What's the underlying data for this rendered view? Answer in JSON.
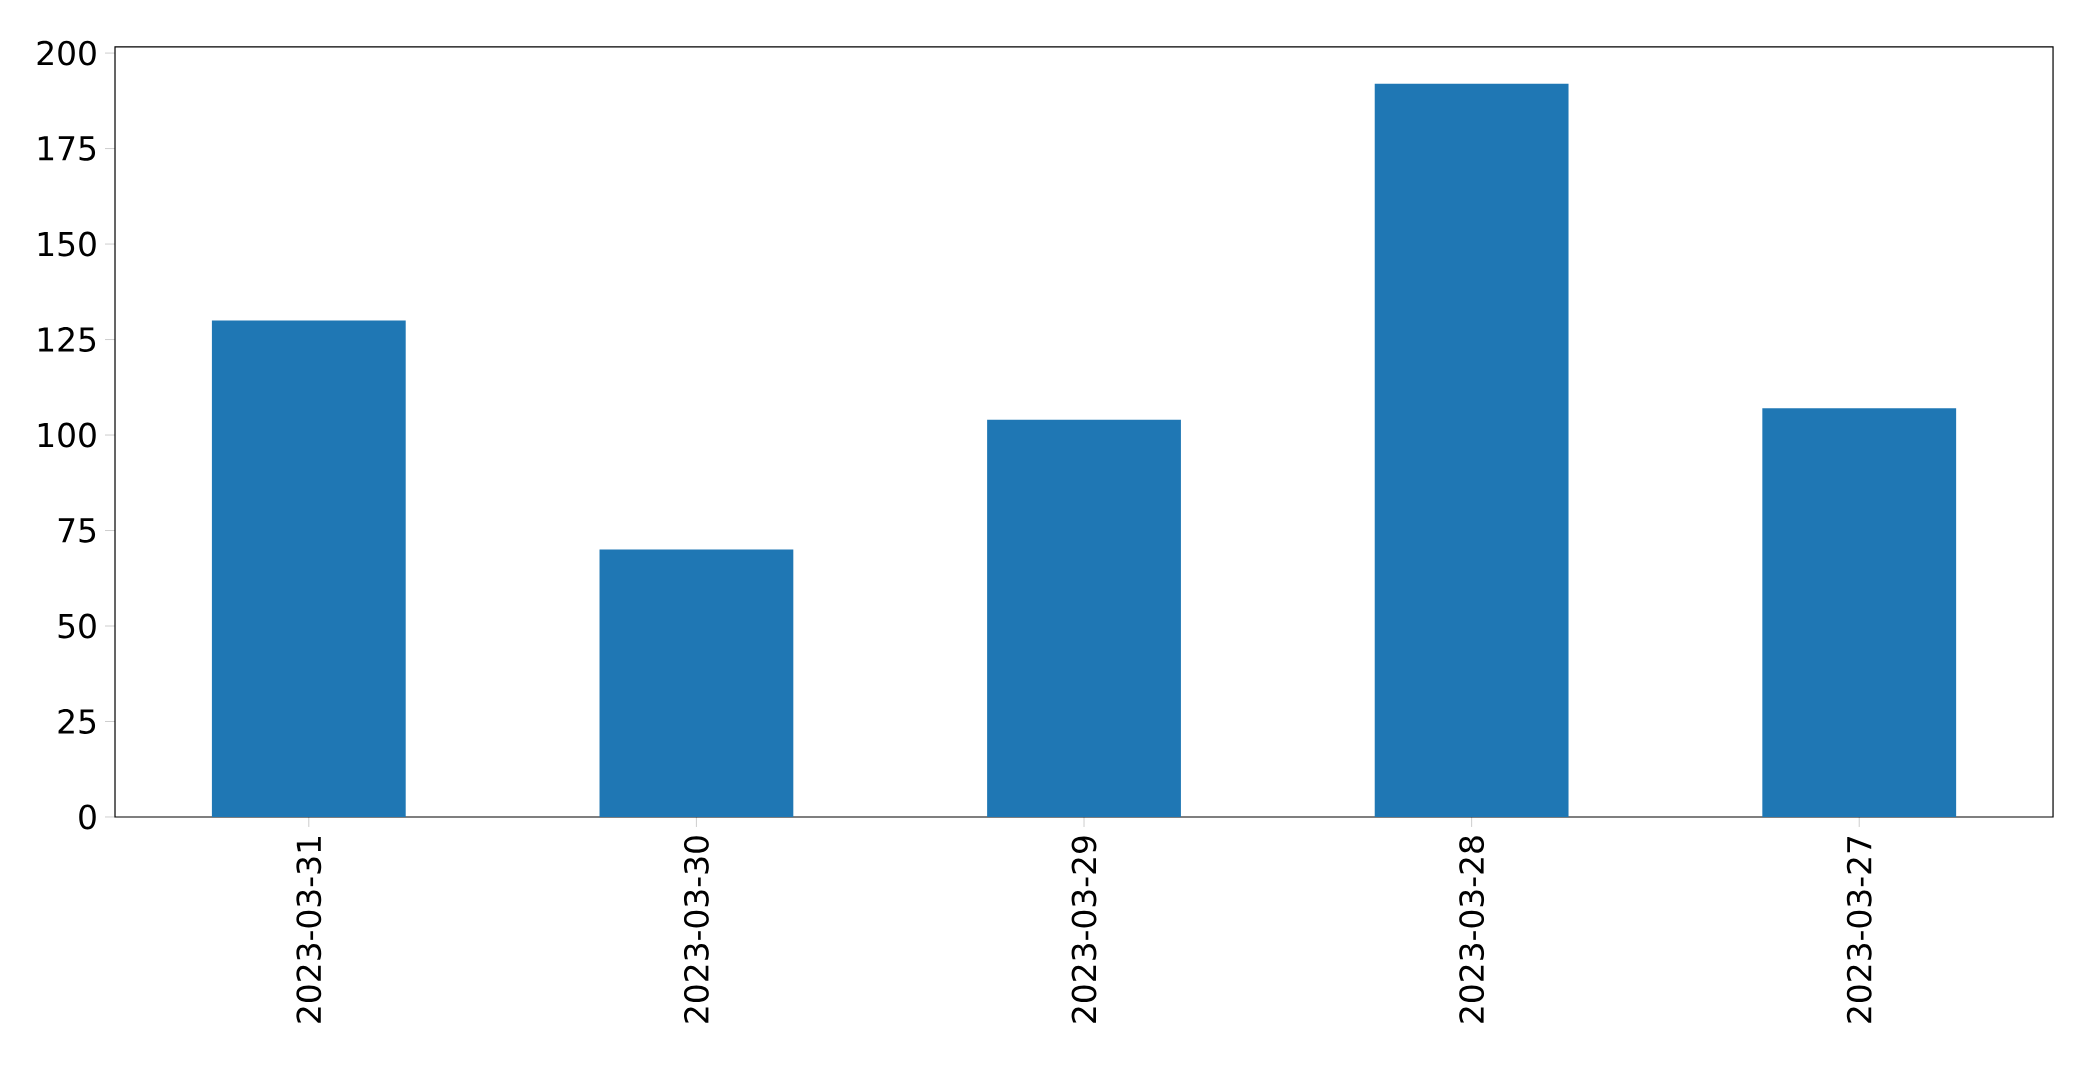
{
  "chart_data": {
    "type": "bar",
    "categories": [
      "2023-03-31",
      "2023-03-30",
      "2023-03-29",
      "2023-03-28",
      "2023-03-27"
    ],
    "values": [
      130,
      70,
      104,
      192,
      107
    ],
    "color": "#1f77b4",
    "ylim": [
      0,
      201.6
    ],
    "yticks": [
      0,
      25,
      50,
      75,
      100,
      125,
      150,
      175,
      200
    ]
  }
}
